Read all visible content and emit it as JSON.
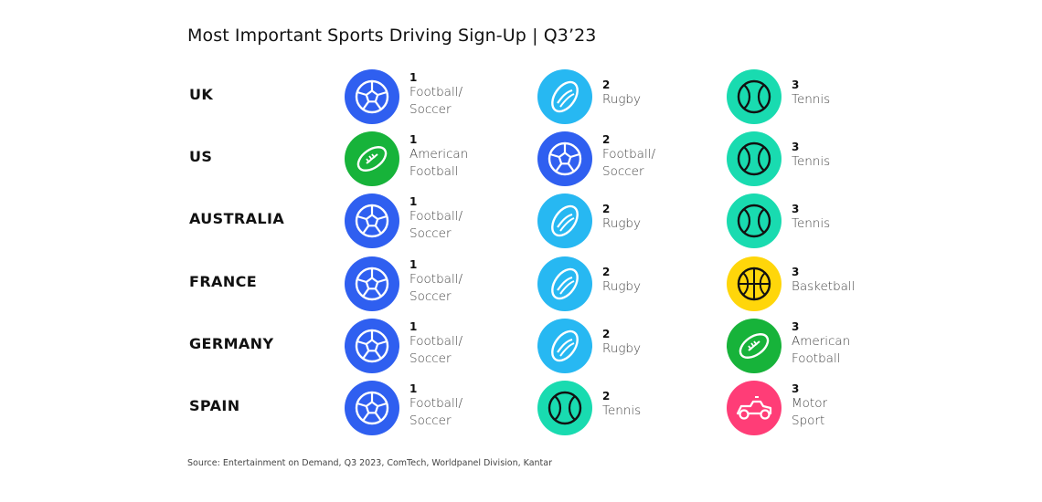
{
  "title": "Most Important Sports Driving Sign-Up | Q3’23",
  "source": "Source: Entertainment on Demand, Q3 2023, ComTech, Worldpanel Division, Kantar",
  "colors": {
    "soccer": "#2f5ff0",
    "rugby": "#27b8f2",
    "tennis": "#19dbb0",
    "american_football": "#17b33a",
    "basketball": "#ffd60a",
    "motor_sport": "#ff3d77"
  },
  "chart_data": {
    "type": "table",
    "columns": [
      "1",
      "2",
      "3"
    ],
    "rows": [
      {
        "country": "UK",
        "ranks": [
          {
            "rank": "1",
            "sport": "Football/\nSoccer",
            "icon": "soccer-ball-icon",
            "color": "#2f5ff0"
          },
          {
            "rank": "2",
            "sport": "Rugby",
            "icon": "rugby-ball-icon",
            "color": "#27b8f2"
          },
          {
            "rank": "3",
            "sport": "Tennis",
            "icon": "tennis-ball-icon",
            "color": "#19dbb0"
          }
        ]
      },
      {
        "country": "US",
        "ranks": [
          {
            "rank": "1",
            "sport": "American\nFootball",
            "icon": "american-football-icon",
            "color": "#17b33a"
          },
          {
            "rank": "2",
            "sport": "Football/\nSoccer",
            "icon": "soccer-ball-icon",
            "color": "#2f5ff0"
          },
          {
            "rank": "3",
            "sport": "Tennis",
            "icon": "tennis-ball-icon",
            "color": "#19dbb0"
          }
        ]
      },
      {
        "country": "AUSTRALIA",
        "ranks": [
          {
            "rank": "1",
            "sport": "Football/\nSoccer",
            "icon": "soccer-ball-icon",
            "color": "#2f5ff0"
          },
          {
            "rank": "2",
            "sport": "Rugby",
            "icon": "rugby-ball-icon",
            "color": "#27b8f2"
          },
          {
            "rank": "3",
            "sport": "Tennis",
            "icon": "tennis-ball-icon",
            "color": "#19dbb0"
          }
        ]
      },
      {
        "country": "FRANCE",
        "ranks": [
          {
            "rank": "1",
            "sport": "Football/\nSoccer",
            "icon": "soccer-ball-icon",
            "color": "#2f5ff0"
          },
          {
            "rank": "2",
            "sport": "Rugby",
            "icon": "rugby-ball-icon",
            "color": "#27b8f2"
          },
          {
            "rank": "3",
            "sport": "Basketball",
            "icon": "basketball-icon",
            "color": "#ffd60a"
          }
        ]
      },
      {
        "country": "GERMANY",
        "ranks": [
          {
            "rank": "1",
            "sport": "Football/\nSoccer",
            "icon": "soccer-ball-icon",
            "color": "#2f5ff0"
          },
          {
            "rank": "2",
            "sport": "Rugby",
            "icon": "rugby-ball-icon",
            "color": "#27b8f2"
          },
          {
            "rank": "3",
            "sport": "American\nFootball",
            "icon": "american-football-icon",
            "color": "#17b33a"
          }
        ]
      },
      {
        "country": "SPAIN",
        "ranks": [
          {
            "rank": "1",
            "sport": "Football/\nSoccer",
            "icon": "soccer-ball-icon",
            "color": "#2f5ff0"
          },
          {
            "rank": "2",
            "sport": "Tennis",
            "icon": "tennis-ball-icon",
            "color": "#19dbb0"
          },
          {
            "rank": "3",
            "sport": "Motor\nSport",
            "icon": "motor-sport-icon",
            "color": "#ff3d77"
          }
        ]
      }
    ]
  }
}
